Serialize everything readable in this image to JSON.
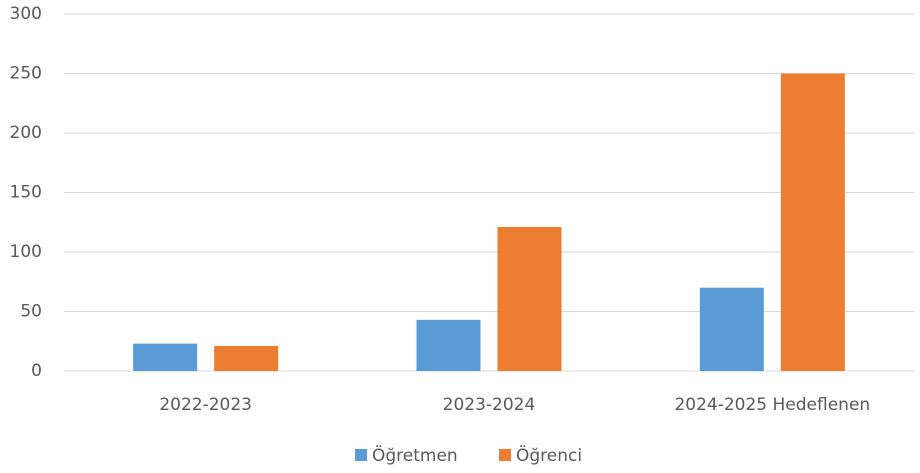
{
  "chart_data": {
    "type": "bar",
    "categories": [
      "2022-2023",
      "2023-2024",
      "2024-2025 Hedeflenen"
    ],
    "series": [
      {
        "name": "Öğretmen",
        "color": "#5b9bd5",
        "values": [
          23,
          43,
          70
        ]
      },
      {
        "name": "Öğrenci",
        "color": "#ed7d31",
        "values": [
          21,
          121,
          250
        ]
      }
    ],
    "ylim": [
      0,
      300
    ],
    "yticks": [
      0,
      50,
      100,
      150,
      200,
      250,
      300
    ],
    "grid": true,
    "legend": "bottom"
  }
}
